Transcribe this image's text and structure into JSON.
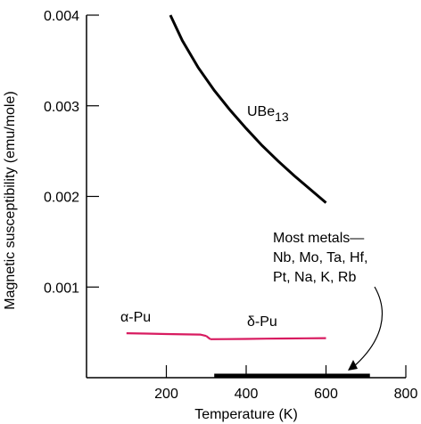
{
  "chart_data": {
    "type": "line",
    "title": "",
    "xlabel": "Temperature (K)",
    "ylabel": "Magnetic susceptibility (emu/mole)",
    "xlim": [
      0,
      800
    ],
    "ylim": [
      0,
      0.004
    ],
    "xticks": [
      200,
      400,
      600,
      800
    ],
    "xtick_labels": [
      "200",
      "400",
      "600",
      "800"
    ],
    "yticks": [
      0.001,
      0.002,
      0.003,
      0.004
    ],
    "ytick_labels": [
      "0.001",
      "0.002",
      "0.003",
      "0.004"
    ],
    "grid": false,
    "series": [
      {
        "name": "UBe13",
        "color": "#000000",
        "x": [
          210,
          240,
          280,
          320,
          360,
          400,
          440,
          480,
          520,
          560,
          600
        ],
        "y": [
          0.004,
          0.00372,
          0.00342,
          0.00317,
          0.00295,
          0.00275,
          0.00256,
          0.00239,
          0.00223,
          0.00208,
          0.00193
        ]
      },
      {
        "name": "α-Pu",
        "color": "#d81b60",
        "x": [
          100,
          150,
          200,
          250,
          285,
          300
        ],
        "y": [
          0.00049,
          0.000486,
          0.000482,
          0.000478,
          0.000476,
          0.00046
        ]
      },
      {
        "name": "δ-Pu",
        "color": "#d81b60",
        "x": [
          310,
          350,
          400,
          450,
          500,
          550,
          600
        ],
        "y": [
          0.000425,
          0.000426,
          0.000428,
          0.00043,
          0.000432,
          0.000434,
          0.000436
        ]
      }
    ],
    "bands": [
      {
        "name": "Most metals",
        "x": [
          320,
          710
        ],
        "y": 0.0
      }
    ],
    "labels": {
      "ube13_main": "UBe",
      "ube13_sub": "13",
      "alpha_pu": "α-Pu",
      "delta_pu": "δ-Pu",
      "most_metals_lines": [
        "Most metals—",
        "Nb, Mo, Ta, Hf,",
        "Pt, Na, K, Rb"
      ]
    }
  }
}
